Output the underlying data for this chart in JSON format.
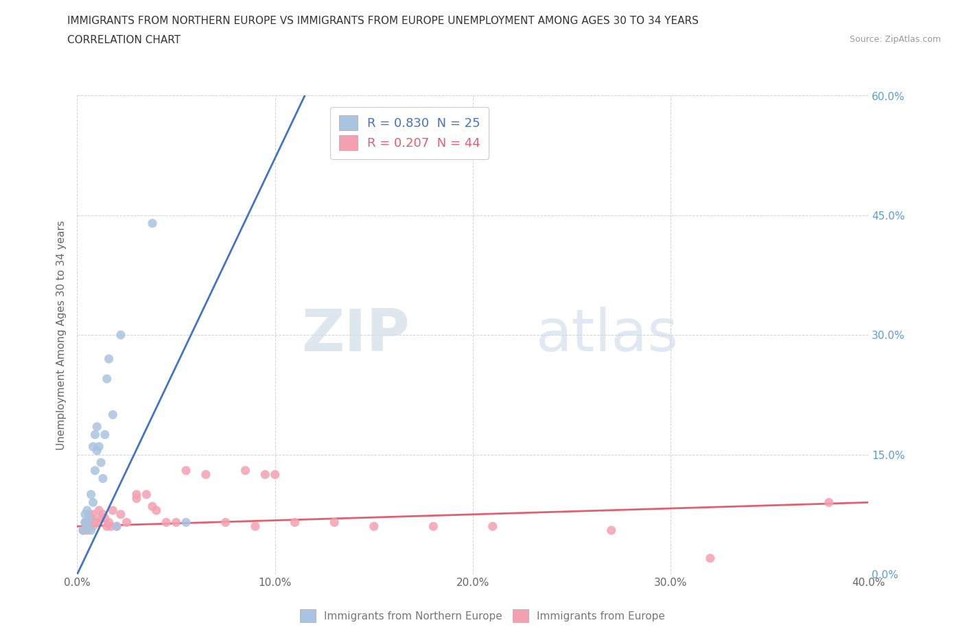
{
  "title_line1": "IMMIGRANTS FROM NORTHERN EUROPE VS IMMIGRANTS FROM EUROPE UNEMPLOYMENT AMONG AGES 30 TO 34 YEARS",
  "title_line2": "CORRELATION CHART",
  "source": "Source: ZipAtlas.com",
  "xlim": [
    0,
    0.4
  ],
  "ylim": [
    0,
    0.6
  ],
  "blue_R": "R = 0.830",
  "blue_N": "N = 25",
  "pink_R": "R = 0.207",
  "pink_N": "N = 44",
  "blue_color": "#a8c4e0",
  "pink_color": "#f4a0b0",
  "blue_line_color": "#4472c4",
  "pink_line_color": "#e06070",
  "legend_label_blue": "Immigrants from Northern Europe",
  "legend_label_pink": "Immigrants from Europe",
  "watermark_zip": "ZIP",
  "watermark_atlas": "atlas",
  "ylabel": "Unemployment Among Ages 30 to 34 years",
  "ytick_color": "#5b9bd5",
  "xtick_color": "#666666",
  "blue_scatter_x": [
    0.003,
    0.004,
    0.004,
    0.005,
    0.005,
    0.006,
    0.007,
    0.007,
    0.008,
    0.008,
    0.009,
    0.009,
    0.01,
    0.01,
    0.011,
    0.012,
    0.013,
    0.014,
    0.015,
    0.016,
    0.018,
    0.02,
    0.022,
    0.038,
    0.055
  ],
  "blue_scatter_y": [
    0.055,
    0.065,
    0.075,
    0.06,
    0.08,
    0.07,
    0.055,
    0.1,
    0.09,
    0.16,
    0.13,
    0.175,
    0.155,
    0.185,
    0.16,
    0.14,
    0.12,
    0.175,
    0.245,
    0.27,
    0.2,
    0.06,
    0.3,
    0.44,
    0.065
  ],
  "pink_scatter_x": [
    0.003,
    0.004,
    0.005,
    0.005,
    0.006,
    0.006,
    0.007,
    0.008,
    0.008,
    0.009,
    0.01,
    0.011,
    0.012,
    0.013,
    0.014,
    0.015,
    0.016,
    0.017,
    0.018,
    0.02,
    0.022,
    0.025,
    0.03,
    0.03,
    0.035,
    0.038,
    0.04,
    0.045,
    0.05,
    0.055,
    0.065,
    0.075,
    0.085,
    0.09,
    0.095,
    0.1,
    0.11,
    0.13,
    0.15,
    0.18,
    0.21,
    0.27,
    0.32,
    0.38
  ],
  "pink_scatter_y": [
    0.055,
    0.065,
    0.055,
    0.06,
    0.06,
    0.075,
    0.07,
    0.06,
    0.075,
    0.065,
    0.065,
    0.08,
    0.07,
    0.075,
    0.07,
    0.06,
    0.065,
    0.06,
    0.08,
    0.06,
    0.075,
    0.065,
    0.095,
    0.1,
    0.1,
    0.085,
    0.08,
    0.065,
    0.065,
    0.13,
    0.125,
    0.065,
    0.13,
    0.06,
    0.125,
    0.125,
    0.065,
    0.065,
    0.06,
    0.06,
    0.06,
    0.055,
    0.02,
    0.09
  ],
  "blue_line_x0": 0.0,
  "blue_line_y0": 0.0,
  "blue_line_x1": 0.115,
  "blue_line_y1": 0.6,
  "pink_line_x0": 0.0,
  "pink_line_y0": 0.06,
  "pink_line_x1": 0.4,
  "pink_line_y1": 0.09
}
